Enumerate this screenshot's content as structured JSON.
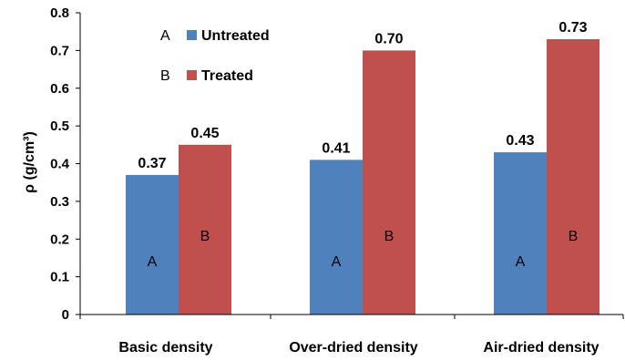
{
  "chart_data": {
    "type": "bar",
    "categories": [
      "Basic density",
      "Over-dried density",
      "Air-dried density"
    ],
    "series": [
      {
        "name": "Untreated",
        "legend_letter": "A",
        "color": "#4F81BD",
        "values": [
          0.37,
          0.41,
          0.43
        ],
        "value_labels": [
          "0.37",
          "0.41",
          "0.43"
        ],
        "group_labels": [
          "A",
          "A",
          "A"
        ]
      },
      {
        "name": "Treated",
        "legend_letter": "B",
        "color": "#C0504D",
        "values": [
          0.45,
          0.7,
          0.73
        ],
        "value_labels": [
          "0.45",
          "0.70",
          "0.73"
        ],
        "group_labels": [
          "B",
          "B",
          "B"
        ]
      }
    ],
    "title": "",
    "xlabel": "",
    "ylabel": "ρ  (g/cm³)",
    "ylim": [
      0,
      0.8
    ],
    "yticks": [
      "0",
      "0.1",
      "0.2",
      "0.3",
      "0.4",
      "0.5",
      "0.6",
      "0.7",
      "0.8"
    ],
    "grid": false,
    "legend": "top-left"
  }
}
